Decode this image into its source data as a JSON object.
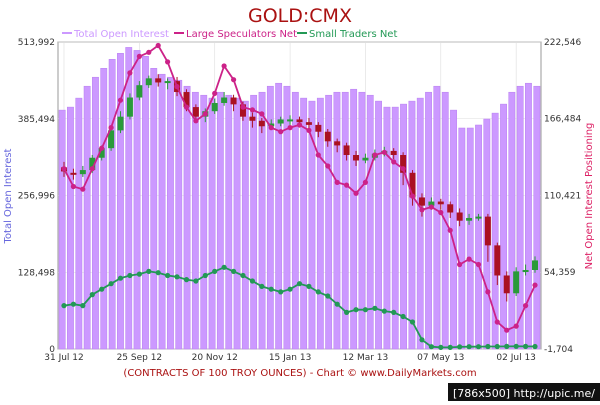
{
  "chart_data": {
    "type": "bar",
    "title": "GOLD:CMX",
    "legend": {
      "placement": "top",
      "entries": [
        {
          "label": "Total Open Interest",
          "color": "#cc99ff"
        },
        {
          "label": "Large Speculators Net",
          "color": "#cc2288"
        },
        {
          "label": "Small Traders Net",
          "color": "#229955"
        }
      ]
    },
    "left_axis": {
      "label": "Total Open Interest",
      "range": [
        0,
        513992
      ],
      "ticks": [
        0,
        128498,
        256996,
        385494,
        513992
      ],
      "tick_labels": [
        "0",
        "128,498",
        "256,996",
        "385,494",
        "513,992"
      ]
    },
    "right_axis": {
      "label": "Net Open Interest Positioning",
      "range": [
        -1704,
        222546
      ],
      "ticks": [
        -1704,
        54359,
        110421,
        166484,
        222546
      ],
      "tick_labels": [
        "-1,704",
        "54,359",
        "110,421",
        "166,484",
        "222,546"
      ]
    },
    "x_tick_labels": [
      "31 Jul 12",
      "25 Sep 12",
      "20 Nov 12",
      "15 Jan 13",
      "12 Mar 13",
      "07 May 13",
      "02 Jul 13"
    ],
    "x_tick_weeks": [
      0,
      8,
      16,
      24,
      32,
      40,
      48
    ],
    "x_caption": "(CONTRACTS OF 100 TROY OUNCES)  - Chart © www.DailyMarkets.com",
    "grid": true,
    "series": [
      {
        "name": "Total Open Interest",
        "axis": "left",
        "render": "bar",
        "values": [
          400000,
          405000,
          420000,
          440000,
          455000,
          470000,
          485000,
          495000,
          505000,
          500000,
          490000,
          470000,
          460000,
          455000,
          450000,
          440000,
          430000,
          425000,
          420000,
          430000,
          425000,
          420000,
          415000,
          425000,
          430000,
          440000,
          445000,
          440000,
          430000,
          420000,
          415000,
          420000,
          425000,
          430000,
          430000,
          435000,
          430000,
          425000,
          415000,
          405000,
          405000,
          410000,
          415000,
          420000,
          430000,
          440000,
          430000,
          400000,
          370000,
          370000,
          375000,
          385000,
          395000,
          410000,
          430000,
          440000,
          445000,
          440000
        ]
      },
      {
        "name": "Large Speculators Net",
        "axis": "right",
        "render": "line",
        "values": [
          130000,
          117000,
          115000,
          130000,
          145000,
          160000,
          180000,
          200000,
          212000,
          215000,
          220000,
          208000,
          190000,
          175000,
          165000,
          170000,
          185000,
          205000,
          195000,
          175000,
          173000,
          170000,
          160000,
          157000,
          160000,
          162000,
          158000,
          140000,
          132000,
          120000,
          118000,
          112000,
          120000,
          140000,
          142000,
          135000,
          130000,
          110000,
          100000,
          102000,
          98000,
          85000,
          60000,
          64000,
          60000,
          40000,
          18000,
          12000,
          15000,
          30000,
          45000
        ]
      },
      {
        "name": "Small Traders Net",
        "axis": "right",
        "render": "line",
        "values": [
          30000,
          31000,
          30000,
          38000,
          42000,
          46000,
          50000,
          52000,
          53000,
          55000,
          54000,
          52000,
          51000,
          49000,
          48000,
          52000,
          55000,
          58000,
          55000,
          52000,
          48000,
          44000,
          42000,
          40000,
          42000,
          46000,
          44000,
          40000,
          37000,
          31000,
          25000,
          27000,
          27000,
          28000,
          26000,
          25000,
          22000,
          18000,
          5000,
          0,
          -500,
          -500,
          -200,
          0,
          0,
          100,
          100,
          200,
          300,
          200,
          100
        ]
      },
      {
        "name": "Price candles",
        "axis": "right",
        "render": "candlestick",
        "values": [
          [
            131000,
            128000,
            135000,
            124000
          ],
          [
            127000,
            126000,
            130000,
            122000
          ],
          [
            126000,
            129000,
            132000,
            124000
          ],
          [
            129000,
            138000,
            140000,
            127000
          ],
          [
            138000,
            145000,
            147000,
            136000
          ],
          [
            145000,
            158000,
            160000,
            143000
          ],
          [
            158000,
            168000,
            172000,
            156000
          ],
          [
            168000,
            182000,
            185000,
            166000
          ],
          [
            182000,
            191000,
            194000,
            180000
          ],
          [
            191000,
            196000,
            198000,
            189000
          ],
          [
            196000,
            193000,
            199000,
            190000
          ],
          [
            193000,
            194000,
            196000,
            188000
          ],
          [
            194000,
            186000,
            197000,
            183000
          ],
          [
            186000,
            175000,
            188000,
            172000
          ],
          [
            175000,
            168000,
            177000,
            165000
          ],
          [
            168000,
            172000,
            174000,
            164000
          ],
          [
            172000,
            178000,
            181000,
            170000
          ],
          [
            178000,
            182000,
            186000,
            176000
          ],
          [
            182000,
            177000,
            184000,
            172000
          ],
          [
            177000,
            168000,
            179000,
            165000
          ],
          [
            168000,
            165000,
            171000,
            160000
          ],
          [
            165000,
            161000,
            167000,
            156000
          ],
          [
            161000,
            163000,
            166000,
            159000
          ],
          [
            163000,
            166000,
            168000,
            161000
          ],
          [
            166000,
            166000,
            169000,
            162000
          ],
          [
            166000,
            164000,
            168000,
            160000
          ],
          [
            164000,
            162000,
            167000,
            158000
          ],
          [
            162000,
            157000,
            164000,
            153000
          ],
          [
            157000,
            150000,
            159000,
            146000
          ],
          [
            150000,
            147000,
            152000,
            142000
          ],
          [
            147000,
            140000,
            149000,
            136000
          ],
          [
            140000,
            136000,
            143000,
            132000
          ],
          [
            136000,
            138000,
            141000,
            134000
          ],
          [
            138000,
            141000,
            144000,
            136000
          ],
          [
            141000,
            143000,
            146000,
            139000
          ],
          [
            143000,
            140000,
            145000,
            137000
          ],
          [
            140000,
            127000,
            142000,
            118000
          ],
          [
            127000,
            109000,
            129000,
            103000
          ],
          [
            109000,
            103000,
            112000,
            95000
          ],
          [
            103000,
            106000,
            109000,
            100000
          ],
          [
            106000,
            104000,
            108000,
            100000
          ],
          [
            104000,
            98000,
            106000,
            94000
          ],
          [
            98000,
            92000,
            101000,
            88000
          ],
          [
            92000,
            94000,
            97000,
            89000
          ],
          [
            94000,
            95000,
            97000,
            92000
          ],
          [
            95000,
            74000,
            97000,
            62000
          ],
          [
            74000,
            52000,
            76000,
            45000
          ],
          [
            52000,
            39000,
            55000,
            33000
          ],
          [
            39000,
            55000,
            58000,
            37000
          ],
          [
            55000,
            56000,
            60000,
            52000
          ],
          [
            56000,
            63000,
            66000,
            54000
          ]
        ]
      }
    ]
  },
  "watermark": {
    "text": "[786x500] http://upic.me/"
  },
  "colors": {
    "oi_bar": "#cc99ff",
    "oi_bar_stroke": "#b87ff0",
    "spec_line": "#cc2288",
    "spec_marker": "#cc2288",
    "small_line": "#229955",
    "candle_up": "#2a9a3a",
    "candle_down": "#aa1122",
    "title": "#aa1111",
    "caption": "#aa1111",
    "left_label": "#6666dd",
    "right_label": "#dd2266",
    "plot_bg": "#ffffff",
    "grid": "#dddddd"
  }
}
